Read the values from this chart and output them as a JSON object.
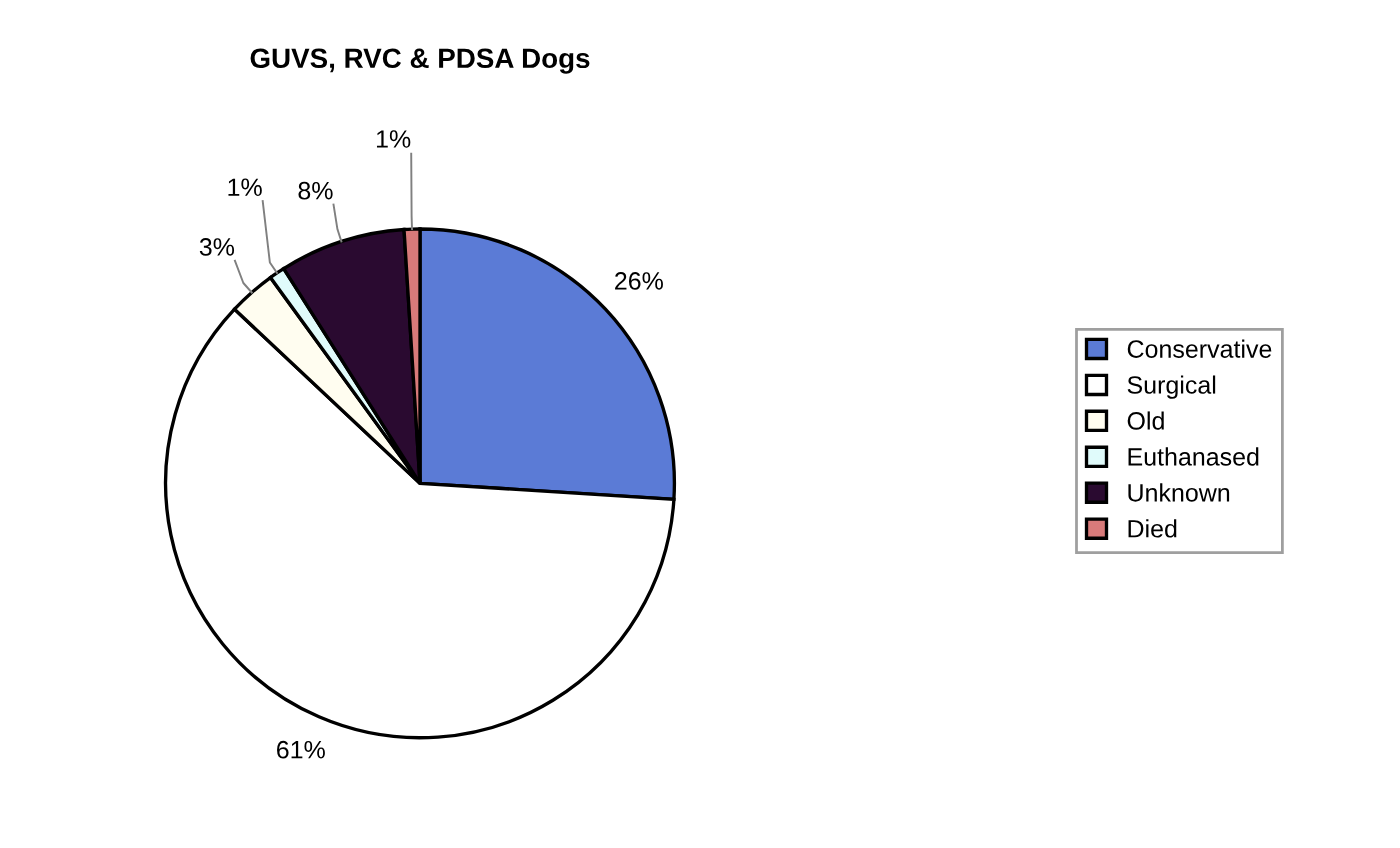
{
  "chart_data": {
    "type": "pie",
    "title": "GUVS, RVC & PDSA Dogs",
    "categories": [
      "Conservative",
      "Surgical",
      "Old",
      "Euthanased",
      "Unknown",
      "Died"
    ],
    "values": [
      26,
      61,
      3,
      1,
      8,
      1
    ],
    "colors": [
      "#5b7bd6",
      "#ffffff",
      "#fffdf0",
      "#e0fbfb",
      "#2a0a30",
      "#d87a7a"
    ],
    "value_labels": [
      "26%",
      "61%",
      "3%",
      "1%",
      "8%",
      "1%"
    ],
    "legend": "right"
  }
}
